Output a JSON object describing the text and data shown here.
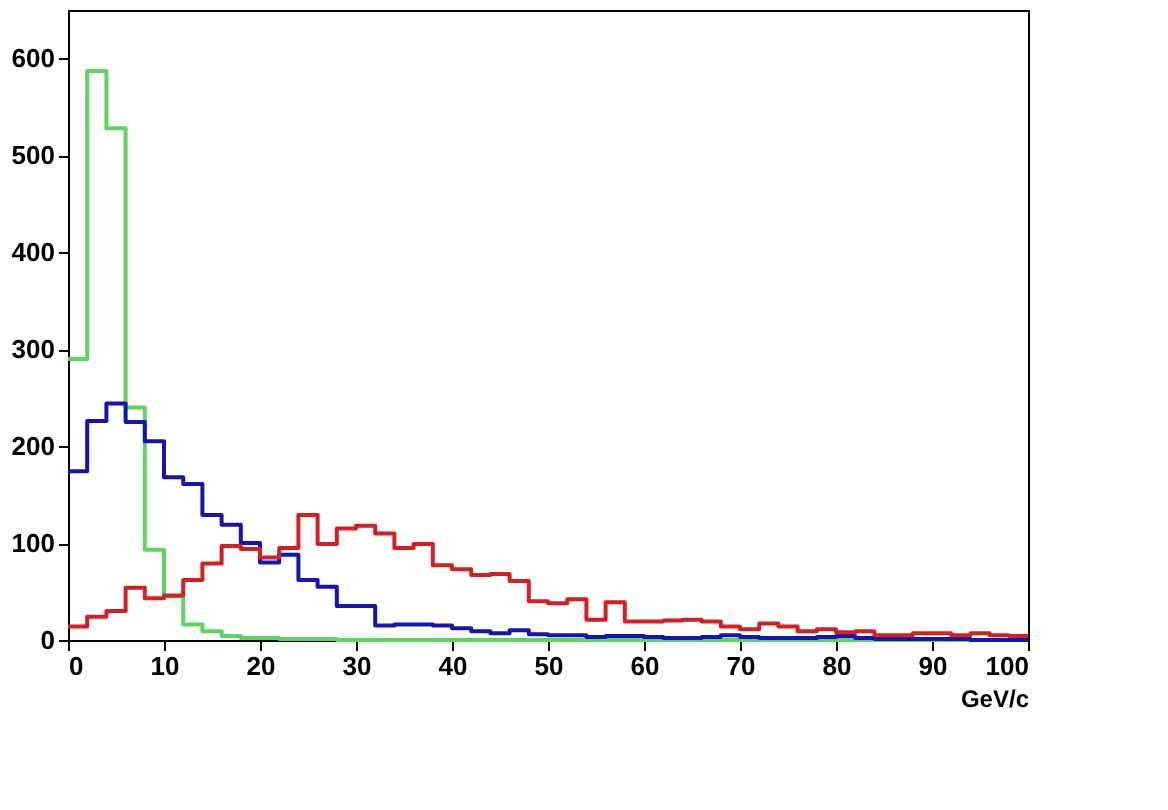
{
  "chart_data": {
    "type": "histogram",
    "xlabel": "GeV/c",
    "bins": [
      0,
      2,
      4,
      6,
      8,
      10,
      12,
      14,
      16,
      18,
      20,
      22,
      24,
      26,
      28,
      30,
      32,
      34,
      36,
      38,
      40,
      42,
      44,
      46,
      48,
      50,
      52,
      54,
      56,
      58,
      60,
      62,
      64,
      66,
      68,
      70,
      72,
      74,
      76,
      78,
      80,
      82,
      84,
      86,
      88,
      90,
      92,
      94,
      96,
      98,
      100
    ],
    "series": [
      {
        "color": "#5fd35f",
        "values": [
          290,
          587,
          528,
          240,
          93,
          45,
          16,
          9,
          4,
          2,
          2,
          1,
          1,
          1,
          0,
          0,
          0,
          0,
          0,
          0,
          0,
          0,
          0,
          0,
          0,
          0,
          0,
          0,
          0,
          0,
          0,
          0,
          0,
          0,
          0,
          0,
          0,
          0,
          0,
          0,
          0,
          0,
          0,
          0,
          0,
          0,
          0,
          0,
          0,
          0
        ]
      },
      {
        "color": "#1414b4",
        "values": [
          174,
          226,
          244,
          225,
          205,
          168,
          161,
          129,
          119,
          100,
          80,
          88,
          62,
          55,
          35,
          35,
          15,
          16,
          16,
          15,
          12,
          9,
          7,
          10,
          6,
          5,
          5,
          3,
          4,
          4,
          3,
          2,
          2,
          3,
          5,
          3,
          2,
          2,
          2,
          3,
          4,
          2,
          1,
          1,
          1,
          1,
          1,
          0,
          0,
          0
        ]
      },
      {
        "color": "#d42020",
        "values": [
          14,
          24,
          30,
          54,
          43,
          46,
          62,
          79,
          97,
          94,
          85,
          95,
          129,
          99,
          115,
          118,
          110,
          95,
          99,
          77,
          73,
          67,
          68,
          61,
          40,
          38,
          42,
          21,
          39,
          19,
          19,
          20,
          21,
          19,
          14,
          11,
          17,
          14,
          9,
          11,
          8,
          9,
          5,
          5,
          7,
          7,
          5,
          7,
          5,
          4
        ]
      }
    ],
    "xlim": [
      0,
      100
    ],
    "ylim": [
      0,
      650
    ],
    "xticks": [
      0,
      10,
      20,
      30,
      40,
      50,
      60,
      70,
      80,
      90,
      100
    ],
    "yticks": [
      0,
      100,
      200,
      300,
      400,
      500,
      600
    ],
    "grid": false
  }
}
